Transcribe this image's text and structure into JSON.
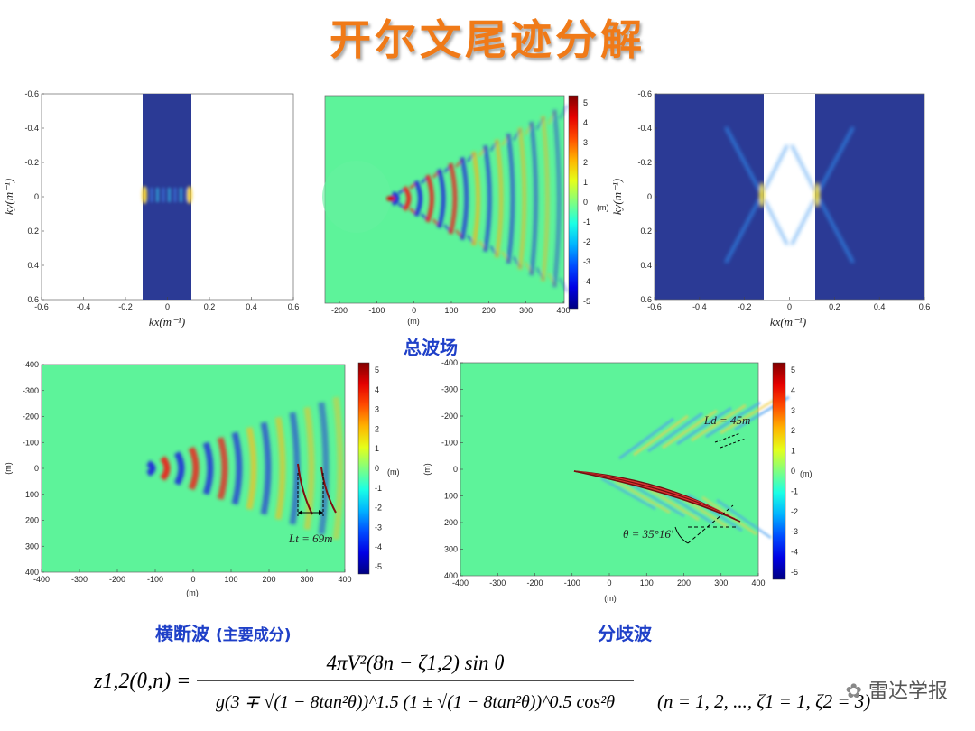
{
  "title": "开尔文尾迹分解",
  "captions": {
    "total": "总波场",
    "transverse": "横断波",
    "transverse_note": "(主要成分)",
    "divergent": "分歧波"
  },
  "units": {
    "m": "(m)"
  },
  "kx_ticks": [
    "-0.6",
    "-0.4",
    "-0.2",
    "0",
    "0.2",
    "0.4",
    "0.6"
  ],
  "ky_ticks": [
    "-0.6",
    "-0.4",
    "-0.2",
    "0",
    "0.2",
    "0.4",
    "0.6"
  ],
  "top_x_ticks": [
    "-200",
    "-100",
    "0",
    "100",
    "200",
    "300",
    "400"
  ],
  "bottom_x_ticks": [
    "-400",
    "-300",
    "-200",
    "-100",
    "0",
    "100",
    "200",
    "300",
    "400"
  ],
  "y_ticks_m": [
    "-400",
    "-300",
    "-200",
    "-100",
    "0",
    "100",
    "200",
    "300",
    "400"
  ],
  "colorbar_ticks": [
    "5",
    "4",
    "3",
    "2",
    "1",
    "0",
    "-1",
    "-2",
    "-3",
    "-4",
    "-5"
  ],
  "annotations": {
    "lt": "Lt = 69m",
    "ld": "Ld = 45m",
    "theta": "θ = 35°16′"
  },
  "formula": {
    "lhs": "z1,2(θ,n) =",
    "numerator": "4πV²(8n − ζ1,2) sin θ",
    "denominator": "g(3 ∓ √(1 − 8tan²θ))^1.5 (1 ± √(1 − 8tan²θ))^0.5 cos²θ",
    "condition": "(n = 1, 2, ..., ζ1 = 1, ζ2 = 3)"
  },
  "watermark": "雷达学报",
  "colors": {
    "title": "#f07a18",
    "caption": "#1f40c8",
    "field": "#5df39a",
    "spectrum": "#2b3a95"
  }
}
